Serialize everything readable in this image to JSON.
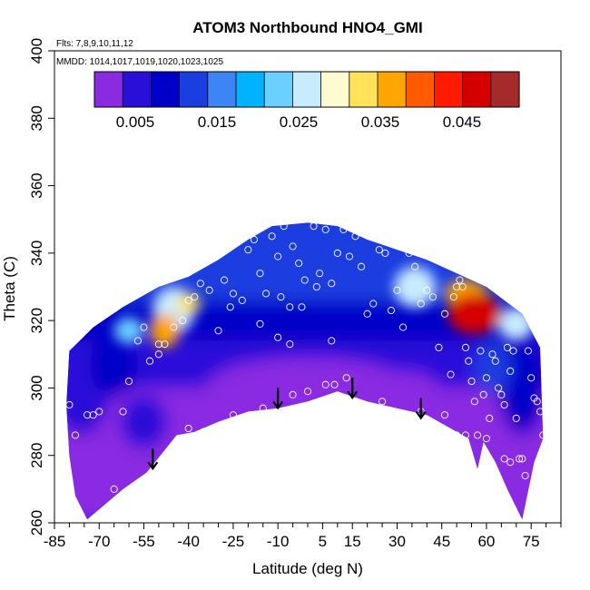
{
  "chart_data": {
    "type": "heatmap",
    "title": "ATOM3 Northbound HNO4_GMI",
    "subtitle_flights": "Flts: 7,8,9,10,11,12",
    "subtitle_dates": "MMDD: 1014,1017,1019,1020,1023,1025",
    "xlabel": "Latitude (deg N)",
    "ylabel": "Theta (C)",
    "xlim": [
      -85,
      85
    ],
    "ylim": [
      260,
      400
    ],
    "x_ticks": [
      -85,
      -70,
      -55,
      -40,
      -25,
      -10,
      5,
      15,
      30,
      45,
      60,
      75
    ],
    "y_ticks": [
      260,
      280,
      300,
      320,
      340,
      360,
      380,
      400
    ],
    "colorbar": {
      "range": [
        0,
        0.052
      ],
      "tick_values": [
        0.005,
        0.015,
        0.025,
        0.035,
        0.045
      ],
      "tick_labels": [
        "0.005",
        "0.015",
        "0.025",
        "0.035",
        "0.045"
      ],
      "colors": [
        "#8a2be2",
        "#2a0fd9",
        "#0000c8",
        "#1a3ee0",
        "#3d85f5",
        "#00b2ff",
        "#6ad0ff",
        "#c8ecff",
        "#fffbd0",
        "#ffe25a",
        "#ffa500",
        "#ff5a00",
        "#ff1a00",
        "#d40000",
        "#a52a2a"
      ]
    },
    "domain_upper": [
      [
        -80,
        311
      ],
      [
        -72,
        318
      ],
      [
        -62,
        324
      ],
      [
        -50,
        330
      ],
      [
        -40,
        333
      ],
      [
        -30,
        338
      ],
      [
        -20,
        344
      ],
      [
        -12,
        348
      ],
      [
        0,
        349
      ],
      [
        10,
        348
      ],
      [
        20,
        344
      ],
      [
        30,
        341
      ],
      [
        40,
        338
      ],
      [
        50,
        334
      ],
      [
        60,
        330
      ],
      [
        66,
        326
      ],
      [
        72,
        322
      ],
      [
        78,
        312
      ],
      [
        79,
        285
      ]
    ],
    "domain_lower": [
      [
        -80,
        311
      ],
      [
        -81,
        295
      ],
      [
        -80,
        280
      ],
      [
        -78,
        268
      ],
      [
        -74,
        261
      ],
      [
        -62,
        270
      ],
      [
        -54,
        275
      ],
      [
        -44,
        286
      ],
      [
        -38,
        287
      ],
      [
        -30,
        290
      ],
      [
        -20,
        293
      ],
      [
        -10,
        294
      ],
      [
        0,
        296
      ],
      [
        10,
        299
      ],
      [
        20,
        296
      ],
      [
        30,
        294
      ],
      [
        40,
        292
      ],
      [
        48,
        288
      ],
      [
        54,
        285
      ],
      [
        57,
        276
      ],
      [
        59,
        284
      ],
      [
        63,
        278
      ],
      [
        67,
        270
      ],
      [
        72,
        261
      ],
      [
        76,
        278
      ],
      [
        79,
        285
      ]
    ],
    "hotspots": [
      {
        "x": 56,
        "y": 322,
        "value": 0.047,
        "rx": 9,
        "ry": 6
      },
      {
        "x": 53,
        "y": 328,
        "value": 0.036,
        "rx": 7,
        "ry": 4
      },
      {
        "x": -48,
        "y": 317,
        "value": 0.035,
        "rx": 5,
        "ry": 5
      },
      {
        "x": -45,
        "y": 323,
        "value": 0.026,
        "rx": 7,
        "ry": 7
      },
      {
        "x": -40,
        "y": 325,
        "value": 0.032,
        "rx": 4,
        "ry": 3
      },
      {
        "x": 36,
        "y": 330,
        "value": 0.025,
        "rx": 7,
        "ry": 6
      },
      {
        "x": -60,
        "y": 317,
        "value": 0.022,
        "rx": 5,
        "ry": 4
      },
      {
        "x": 70,
        "y": 319,
        "value": 0.026,
        "rx": 6,
        "ry": 5
      }
    ],
    "observations": [
      [
        -80,
        295
      ],
      [
        -78,
        286
      ],
      [
        -74,
        292
      ],
      [
        -72,
        292
      ],
      [
        -70,
        293
      ],
      [
        -62,
        293
      ],
      [
        -70,
        262
      ],
      [
        -77,
        261
      ],
      [
        -65,
        270
      ],
      [
        -60,
        302
      ],
      [
        -57,
        314
      ],
      [
        -55,
        318
      ],
      [
        -53,
        308
      ],
      [
        -50,
        310
      ],
      [
        -48,
        313
      ],
      [
        -45,
        318
      ],
      [
        -42,
        320
      ],
      [
        -40,
        326
      ],
      [
        -38,
        327
      ],
      [
        -36,
        331
      ],
      [
        -33,
        329
      ],
      [
        -30,
        317
      ],
      [
        -28,
        332
      ],
      [
        -25,
        328
      ],
      [
        -22,
        326
      ],
      [
        -20,
        341
      ],
      [
        -18,
        344
      ],
      [
        -16,
        334
      ],
      [
        -14,
        328
      ],
      [
        -12,
        345
      ],
      [
        -10,
        339
      ],
      [
        -8,
        348
      ],
      [
        -5,
        342
      ],
      [
        -3,
        337
      ],
      [
        -1,
        332
      ],
      [
        2,
        348
      ],
      [
        4,
        334
      ],
      [
        6,
        347
      ],
      [
        8,
        331
      ],
      [
        -6,
        324
      ],
      [
        -10,
        315
      ],
      [
        -9,
        327
      ],
      [
        -2,
        324
      ],
      [
        3,
        330
      ],
      [
        10,
        340
      ],
      [
        12,
        347
      ],
      [
        14,
        339
      ],
      [
        16,
        345
      ],
      [
        18,
        336
      ],
      [
        20,
        322
      ],
      [
        22,
        325
      ],
      [
        24,
        341
      ],
      [
        26,
        340
      ],
      [
        28,
        323
      ],
      [
        30,
        329
      ],
      [
        32,
        318
      ],
      [
        34,
        340
      ],
      [
        36,
        336
      ],
      [
        38,
        325
      ],
      [
        40,
        329
      ],
      [
        42,
        327
      ],
      [
        44,
        312
      ],
      [
        46,
        322
      ],
      [
        48,
        304
      ],
      [
        49,
        327
      ],
      [
        50,
        330
      ],
      [
        51,
        332
      ],
      [
        52,
        330
      ],
      [
        53,
        312
      ],
      [
        54,
        308
      ],
      [
        55,
        302
      ],
      [
        56,
        296
      ],
      [
        57,
        286
      ],
      [
        58,
        311
      ],
      [
        59,
        298
      ],
      [
        60,
        303
      ],
      [
        61,
        291
      ],
      [
        62,
        310
      ],
      [
        63,
        308
      ],
      [
        64,
        300
      ],
      [
        65,
        298
      ],
      [
        66,
        295
      ],
      [
        67,
        312
      ],
      [
        68,
        305
      ],
      [
        69,
        311
      ],
      [
        70,
        291
      ],
      [
        71,
        279
      ],
      [
        72,
        279
      ],
      [
        73,
        274
      ],
      [
        74,
        311
      ],
      [
        75,
        303
      ],
      [
        76,
        297
      ],
      [
        77,
        296
      ],
      [
        78,
        293
      ],
      [
        79,
        286
      ],
      [
        -40,
        288
      ],
      [
        -35,
        287
      ],
      [
        -25,
        292
      ],
      [
        -15,
        294
      ],
      [
        -5,
        298
      ],
      [
        0,
        299
      ],
      [
        6,
        301
      ],
      [
        9,
        301
      ],
      [
        13,
        303
      ],
      [
        25,
        296
      ],
      [
        38,
        293
      ],
      [
        46,
        292
      ],
      [
        50,
        286
      ],
      [
        53,
        286
      ],
      [
        60,
        285
      ],
      [
        66,
        279
      ],
      [
        68,
        278
      ],
      [
        -50,
        313
      ],
      [
        -26,
        324
      ],
      [
        -16,
        319
      ],
      [
        -6,
        313
      ],
      [
        8,
        314
      ]
    ],
    "arrows": [
      [
        -52,
        282
      ],
      [
        -10,
        300
      ],
      [
        15,
        303
      ],
      [
        38,
        297
      ]
    ]
  }
}
